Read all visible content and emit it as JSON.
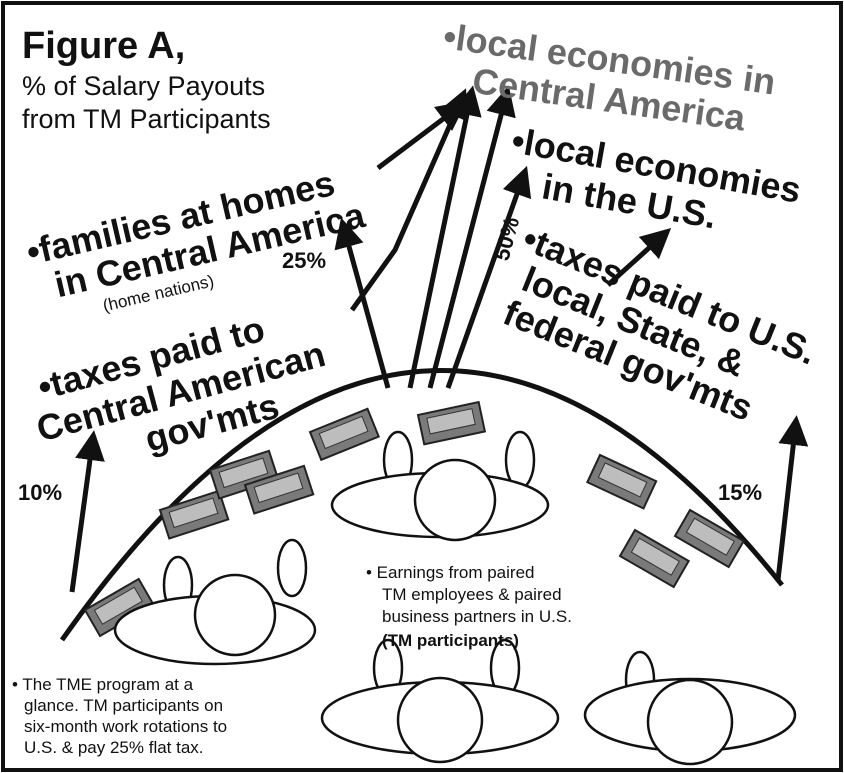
{
  "title": {
    "figure": "Figure A,",
    "line2": "% of Salary Payouts",
    "line3": "from TM Participants"
  },
  "nodes": [
    {
      "lines": [
        "•local economies in",
        "Central America"
      ]
    },
    {
      "lines": [
        "•local economies",
        "in the U.S."
      ]
    },
    {
      "lines": [
        "•families at homes",
        "in Central America"
      ],
      "sub": "(home nations)"
    },
    {
      "lines": [
        "•taxes paid to",
        "Central American",
        "gov'mts"
      ]
    },
    {
      "lines": [
        "•taxes paid to U.S.",
        "local, State, &",
        "federal gov'mts"
      ]
    }
  ],
  "percents": [
    "10%",
    "25%",
    "50%",
    "15%"
  ],
  "earnings_note": [
    "• Earnings from paired",
    "TM employees & paired",
    "business partners in U.S.",
    "(TM participants)"
  ],
  "program_note": [
    "• The TME program at a",
    "glance. TM participants on",
    "six-month work rotations to",
    "U.S. & pay 25% flat tax."
  ]
}
